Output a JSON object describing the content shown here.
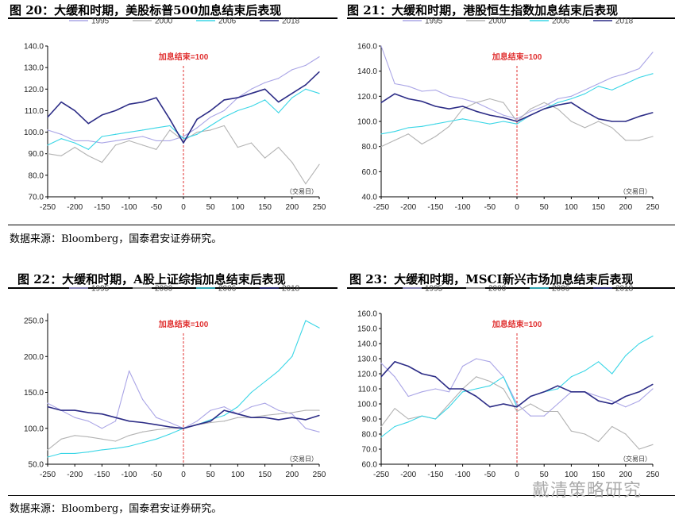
{
  "common": {
    "source": "数据来源：Bloomberg，国泰君安证券研究。",
    "watermark": "戴清策略研究"
  },
  "colors": {
    "1995": "#aaa5e6",
    "2000": "#b3b3b3",
    "2006": "#3ad6e6",
    "2018": "#2c2c86",
    "marker": "#e03030"
  },
  "chart_data": [
    {
      "type": "line",
      "title": "图 20：大缓和时期，美股标普500加息结束后表现",
      "annotation": "加息结束=100",
      "xlabel": "（交易日）",
      "ylabel": "",
      "ylim": [
        70,
        140
      ],
      "yticks": [
        "140.0",
        "130.0",
        "120.0",
        "110.0",
        "100.0",
        "90.0",
        "80.0",
        "70.0"
      ],
      "ytick_values": [
        140,
        130,
        120,
        110,
        100,
        90,
        80,
        70
      ],
      "xlim": [
        -250,
        250
      ],
      "xticks": [
        "-250",
        "-200",
        "-150",
        "-100",
        "-50",
        "0",
        "50",
        "100",
        "150",
        "200",
        "250"
      ],
      "legend": "top",
      "grid": false,
      "x": [
        -250,
        -225,
        -200,
        -175,
        -150,
        -125,
        -100,
        -75,
        -50,
        -25,
        0,
        25,
        50,
        75,
        100,
        125,
        150,
        175,
        200,
        225,
        250
      ],
      "series": [
        {
          "name": "1995",
          "values": [
            101,
            99,
            96,
            96,
            95,
            96,
            97,
            98,
            96,
            96,
            98,
            102,
            107,
            110,
            116,
            120,
            123,
            125,
            129,
            131,
            135
          ]
        },
        {
          "name": "2000",
          "values": [
            90,
            89,
            93,
            89,
            86,
            94,
            96,
            94,
            92,
            101,
            96,
            100,
            101,
            103,
            93,
            95,
            88,
            93,
            86,
            76,
            85
          ]
        },
        {
          "name": "2006",
          "values": [
            94,
            97,
            95,
            92,
            98,
            99,
            100,
            101,
            102,
            103,
            97,
            99,
            103,
            107,
            110,
            112,
            115,
            109,
            116,
            120,
            118
          ]
        },
        {
          "name": "2018",
          "values": [
            107,
            114,
            110,
            104,
            108,
            110,
            113,
            114,
            116,
            106,
            95,
            106,
            110,
            115,
            116,
            118,
            120,
            114,
            118,
            122,
            128
          ]
        }
      ]
    },
    {
      "type": "line",
      "title": "图 21：大缓和时期，港股恒生指数加息结束后表现",
      "annotation": "加息结束=100",
      "xlabel": "（交易日）",
      "ylabel": "",
      "ylim": [
        40,
        160
      ],
      "yticks": [
        "160.0",
        "140.0",
        "120.0",
        "100.0",
        "80.0",
        "60.0",
        "40.0"
      ],
      "ytick_values": [
        160,
        140,
        120,
        100,
        80,
        60,
        40
      ],
      "xlim": [
        -250,
        250
      ],
      "xticks": [
        "-250",
        "-200",
        "-150",
        "-100",
        "-50",
        "0",
        "50",
        "100",
        "150",
        "200",
        "250"
      ],
      "legend": "top",
      "grid": false,
      "x": [
        -250,
        -225,
        -200,
        -175,
        -150,
        -125,
        -100,
        -75,
        -50,
        -25,
        0,
        25,
        50,
        75,
        100,
        125,
        150,
        175,
        200,
        225,
        250
      ],
      "series": [
        {
          "name": "1995",
          "values": [
            160,
            130,
            128,
            124,
            125,
            120,
            118,
            115,
            110,
            105,
            102,
            108,
            112,
            118,
            120,
            125,
            130,
            135,
            138,
            142,
            155
          ]
        },
        {
          "name": "2000",
          "values": [
            80,
            85,
            90,
            82,
            88,
            96,
            110,
            115,
            118,
            115,
            100,
            110,
            115,
            110,
            100,
            95,
            100,
            95,
            85,
            85,
            88
          ]
        },
        {
          "name": "2006",
          "values": [
            90,
            92,
            95,
            96,
            98,
            100,
            102,
            100,
            98,
            100,
            98,
            105,
            110,
            115,
            118,
            122,
            128,
            125,
            130,
            135,
            138
          ]
        },
        {
          "name": "2018",
          "values": [
            115,
            122,
            118,
            116,
            112,
            110,
            112,
            108,
            105,
            103,
            100,
            105,
            110,
            113,
            115,
            108,
            102,
            100,
            100,
            104,
            107
          ]
        }
      ]
    },
    {
      "type": "line",
      "title": "图 22：大缓和时期，A股上证综指加息结束后表现",
      "annotation": "加息结束=100",
      "xlabel": "（交易日）",
      "ylabel": "",
      "ylim": [
        50,
        260
      ],
      "yticks": [
        "250.0",
        "200.0",
        "150.0",
        "100.0",
        "50.0"
      ],
      "ytick_values": [
        250,
        200,
        150,
        100,
        50
      ],
      "xlim": [
        -250,
        250
      ],
      "xticks": [
        "-250",
        "-200",
        "-150",
        "-100",
        "-50",
        "0",
        "50",
        "100",
        "150",
        "200",
        "250"
      ],
      "legend": "top",
      "grid": false,
      "x": [
        -250,
        -225,
        -200,
        -175,
        -150,
        -125,
        -100,
        -75,
        -50,
        -25,
        0,
        25,
        50,
        75,
        100,
        125,
        150,
        175,
        200,
        225,
        250
      ],
      "series": [
        {
          "name": "1995",
          "values": [
            135,
            125,
            115,
            110,
            100,
            110,
            180,
            140,
            115,
            108,
            100,
            110,
            125,
            130,
            120,
            130,
            135,
            125,
            120,
            100,
            95
          ]
        },
        {
          "name": "2000",
          "values": [
            70,
            85,
            90,
            88,
            85,
            82,
            90,
            95,
            98,
            100,
            100,
            105,
            108,
            110,
            115,
            115,
            118,
            120,
            122,
            125,
            125
          ]
        },
        {
          "name": "2006",
          "values": [
            60,
            65,
            65,
            67,
            70,
            72,
            75,
            80,
            85,
            92,
            100,
            105,
            112,
            118,
            130,
            150,
            165,
            180,
            200,
            250,
            240
          ]
        },
        {
          "name": "2018",
          "values": [
            130,
            125,
            125,
            122,
            120,
            115,
            110,
            108,
            105,
            102,
            100,
            105,
            110,
            125,
            120,
            115,
            115,
            112,
            115,
            112,
            118
          ]
        }
      ]
    },
    {
      "type": "line",
      "title": "图 23：大缓和时期，MSCI新兴市场加息结束后表现",
      "annotation": "加息结束=100",
      "xlabel": "（交易日）",
      "ylabel": "",
      "ylim": [
        60,
        160
      ],
      "yticks": [
        "160.0",
        "150.0",
        "140.0",
        "130.0",
        "120.0",
        "110.0",
        "100.0",
        "90.0",
        "80.0",
        "70.0",
        "60.0"
      ],
      "ytick_values": [
        160,
        150,
        140,
        130,
        120,
        110,
        100,
        90,
        80,
        70,
        60
      ],
      "xlim": [
        -250,
        250
      ],
      "xticks": [
        "-250",
        "-200",
        "-150",
        "-100",
        "-50",
        "0",
        "50",
        "100",
        "150",
        "200",
        "250"
      ],
      "legend": "top",
      "grid": false,
      "x": [
        -250,
        -225,
        -200,
        -175,
        -150,
        -125,
        -100,
        -75,
        -50,
        -25,
        0,
        25,
        50,
        75,
        100,
        125,
        150,
        175,
        200,
        225,
        250
      ],
      "series": [
        {
          "name": "1995",
          "values": [
            127,
            118,
            105,
            108,
            110,
            108,
            125,
            130,
            128,
            118,
            100,
            92,
            92,
            100,
            108,
            108,
            105,
            102,
            98,
            102,
            110
          ]
        },
        {
          "name": "2000",
          "values": [
            85,
            97,
            90,
            92,
            90,
            100,
            110,
            118,
            115,
            110,
            95,
            100,
            95,
            95,
            82,
            80,
            75,
            85,
            80,
            70,
            73
          ]
        },
        {
          "name": "2006",
          "values": [
            78,
            85,
            88,
            92,
            90,
            98,
            108,
            110,
            112,
            118,
            98,
            105,
            108,
            110,
            118,
            122,
            128,
            120,
            132,
            140,
            145
          ]
        },
        {
          "name": "2018",
          "values": [
            118,
            128,
            125,
            120,
            118,
            110,
            110,
            105,
            98,
            100,
            98,
            105,
            108,
            112,
            108,
            108,
            102,
            100,
            105,
            108,
            113
          ]
        }
      ]
    }
  ]
}
